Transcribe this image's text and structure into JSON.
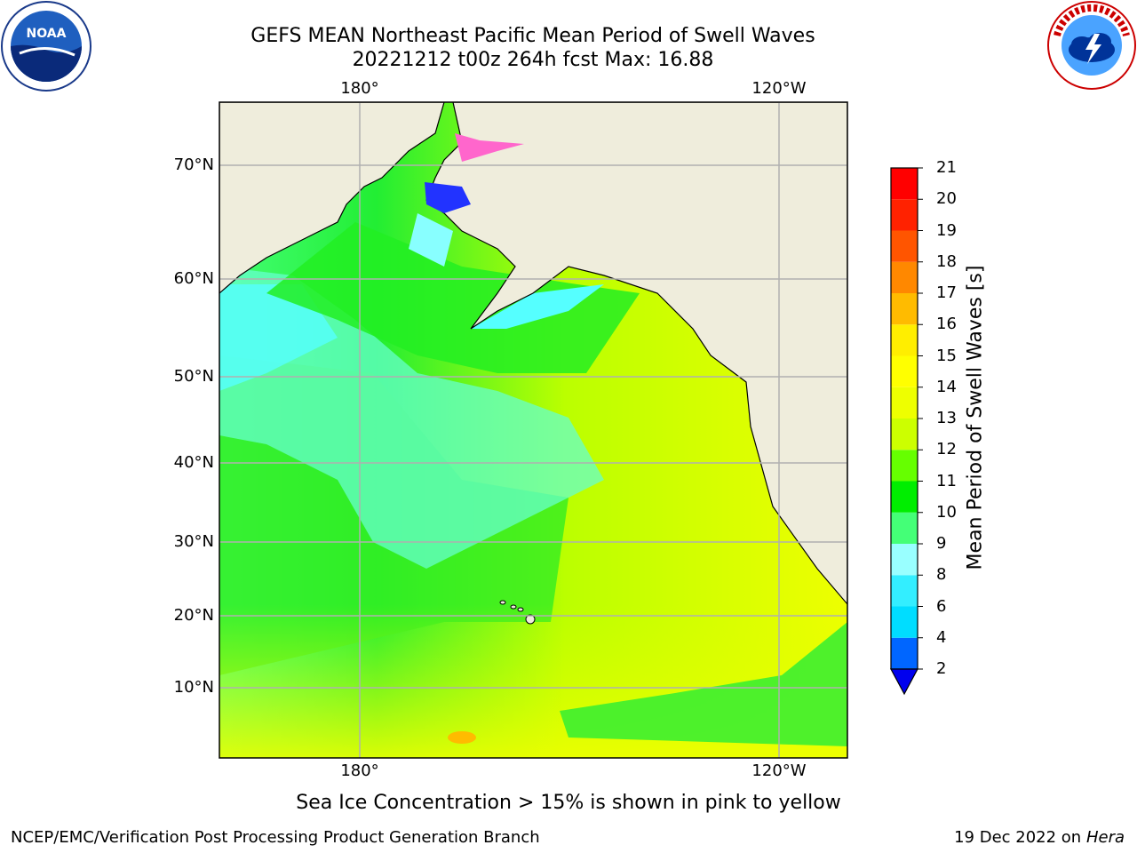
{
  "header": {
    "title_line1": "GEFS MEAN Northeast Pacific Mean Period of Swell Waves",
    "title_line2": "20221212 t00z 264h fcst   Max: 16.88"
  },
  "logos": {
    "left": "noaa-logo",
    "right": "nws-logo"
  },
  "map": {
    "lon_ticks_top": [
      "180°",
      "120°W"
    ],
    "lon_ticks_bottom": [
      "180°",
      "120°W"
    ],
    "lat_ticks": [
      "70°N",
      "60°N",
      "50°N",
      "40°N",
      "30°N",
      "20°N",
      "10°N"
    ],
    "land_color": "#efeddc",
    "grid_color": "#b0b0b0"
  },
  "colorbar": {
    "label": "Mean Period of Swell Waves [s]",
    "ticks": [
      "2",
      "4",
      "6",
      "8",
      "9",
      "10",
      "11",
      "12",
      "13",
      "14",
      "15",
      "16",
      "17",
      "18",
      "19",
      "20",
      "21"
    ],
    "colors": [
      "#0000ff",
      "#0066ff",
      "#00ddff",
      "#33eeff",
      "#99ffff",
      "#44ff77",
      "#00ee00",
      "#66ff00",
      "#ccff00",
      "#eeff00",
      "#ffff00",
      "#ffee00",
      "#ffbb00",
      "#ff8800",
      "#ff5500",
      "#ff2200",
      "#ff0000"
    ],
    "extend_min_color": "#0000ee"
  },
  "footer": {
    "note": "Sea Ice Concentration > 15% is shown in pink to yellow",
    "credit": "NCEP/EMC/Verification Post Processing Product Generation Branch",
    "date_prefix": "19 Dec 2022 on",
    "date_host": "Hera"
  }
}
